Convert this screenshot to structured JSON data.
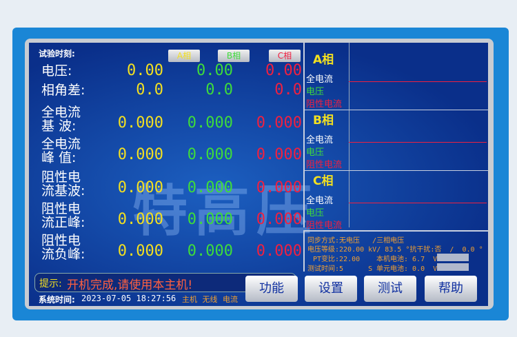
{
  "header": {
    "test_time_label": "试验时刻:",
    "tabs": [
      "A相",
      "B相",
      "C相"
    ]
  },
  "rows": [
    {
      "label": [
        "电压:"
      ],
      "a": "0.00",
      "b": "0.00",
      "c": "0.00"
    },
    {
      "label": [
        "相角差:"
      ],
      "a": "0.0",
      "b": "0.0",
      "c": "0.0"
    },
    {
      "label": [
        "全电流",
        "基  波:"
      ],
      "a": "0.000",
      "b": "0.000",
      "c": "0.000"
    },
    {
      "label": [
        "全电流",
        "峰  值:"
      ],
      "a": "0.000",
      "b": "0.000",
      "c": "0.000"
    },
    {
      "label": [
        "阻性电",
        "流基波:"
      ],
      "a": "0.000",
      "b": "0.000",
      "c": "0.000"
    },
    {
      "label": [
        "阻性电",
        "流正峰:"
      ],
      "a": "0.000",
      "b": "0.000",
      "c": "0.000"
    },
    {
      "label": [
        "阻性电",
        "流负峰:"
      ],
      "a": "0.000",
      "b": "0.000",
      "c": "0.000"
    }
  ],
  "watermark": "特高压",
  "phases": [
    {
      "title": "A相",
      "items": [
        "全电流",
        "电压",
        "阻性电流"
      ]
    },
    {
      "title": "B相",
      "items": [
        "全电流",
        "电压",
        "阻性电流"
      ]
    },
    {
      "title": "C相",
      "items": [
        "全电流",
        "电压",
        "阻性电流"
      ]
    }
  ],
  "info": {
    "sync": "同步方式:无电压   /三相电压",
    "voltage_level": "电压等级:220.00 kV/ 83.5 °抗干扰:否  /  0.0 °",
    "pt": "PT变比:22.00",
    "host_battery": "本机电池: 6.7  V",
    "test_time": "测试时间:5      S",
    "unit_battery": "单元电池: 0.0  V"
  },
  "tip": {
    "label": "提示:",
    "message": "开机完成,请使用本主机!"
  },
  "status": {
    "time_label": "系统时间:",
    "time": "2023-07-05 18:27:56",
    "flags": "主机 无线 电流"
  },
  "buttons": [
    "功能",
    "设置",
    "测试",
    "帮助"
  ],
  "colors": {
    "phase_a": "#f3e020",
    "phase_b": "#3fdc3a",
    "phase_c": "#f02040"
  }
}
